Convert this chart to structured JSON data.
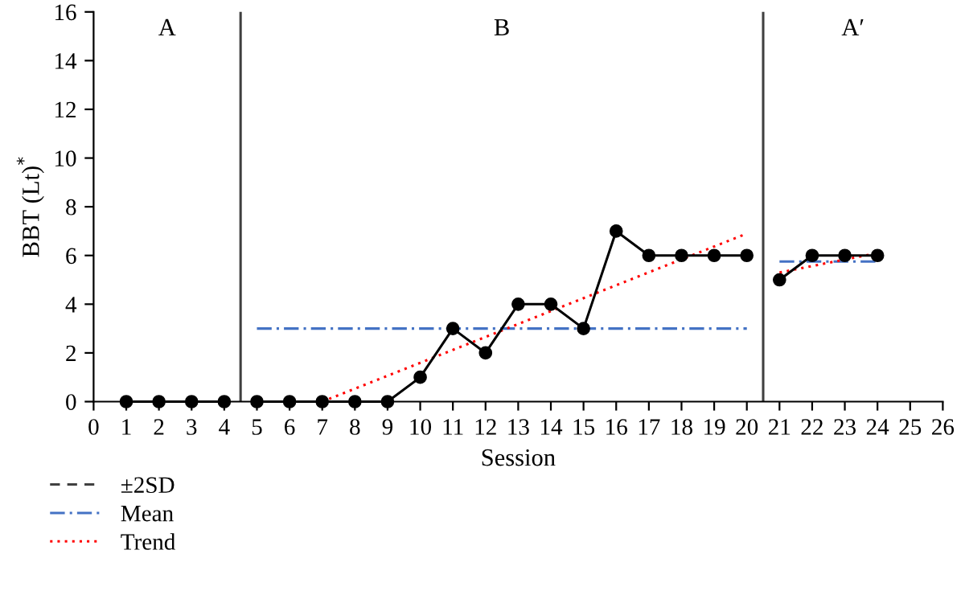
{
  "chart_data": {
    "type": "line",
    "xlabel": "Session",
    "ylabel": "BBT (Lt)$^{*}$",
    "xlim": [
      0,
      26
    ],
    "xticks": [
      0,
      1,
      2,
      3,
      4,
      5,
      6,
      7,
      8,
      9,
      10,
      11,
      12,
      13,
      14,
      15,
      16,
      17,
      18,
      19,
      20,
      21,
      22,
      23,
      24,
      25,
      26
    ],
    "ylim": [
      0,
      16
    ],
    "yticks": [
      0,
      2,
      4,
      6,
      8,
      10,
      12,
      14,
      16
    ],
    "grid": false,
    "legend": "bottom left",
    "series": [
      {
        "color": "#000000",
        "x": [
          1,
          2,
          3,
          4
        ],
        "values": [
          0,
          0,
          0,
          0
        ],
        "marker": "circle",
        "line_style": "solid"
      },
      {
        "color": "#000000",
        "x": [
          5,
          6,
          7,
          8,
          9,
          10,
          11,
          12,
          13,
          14,
          15,
          16,
          17,
          18,
          19,
          20
        ],
        "values": [
          0,
          0,
          0,
          0,
          0,
          1,
          3,
          2,
          4,
          4,
          3,
          7,
          6,
          6,
          6,
          6
        ],
        "marker": "circle",
        "line_style": "solid"
      },
      {
        "color": "#000000",
        "x": [
          21,
          22,
          23,
          24
        ],
        "values": [
          5,
          6,
          6,
          6
        ],
        "marker": "circle",
        "line_style": "solid"
      },
      {
        "name": "±2SD",
        "color": "#404040",
        "marker": "none",
        "line_style": "dashed"
      },
      {
        "name": "Mean",
        "color": "#4472c4",
        "x": [
          5,
          20,
          20.5,
          21,
          24
        ],
        "values": [
          3,
          3,
          null,
          5.75,
          5.75
        ],
        "marker": "none",
        "line_style": "dashdot"
      },
      {
        "name": "Trend",
        "color": "#ff0000",
        "x": [
          7,
          20,
          20.5,
          21,
          24
        ],
        "values": [
          0,
          6.9,
          null,
          5.3,
          6.1
        ],
        "marker": "none",
        "line_style": "dotted"
      }
    ],
    "ref_lines": [
      {
        "axis": "x",
        "value": 4.5,
        "color": "#404040",
        "line_style": "solid"
      },
      {
        "axis": "x",
        "value": 20.5,
        "color": "#404040",
        "line_style": "solid"
      }
    ],
    "annotations": [
      "A",
      "B",
      "A′"
    ]
  }
}
